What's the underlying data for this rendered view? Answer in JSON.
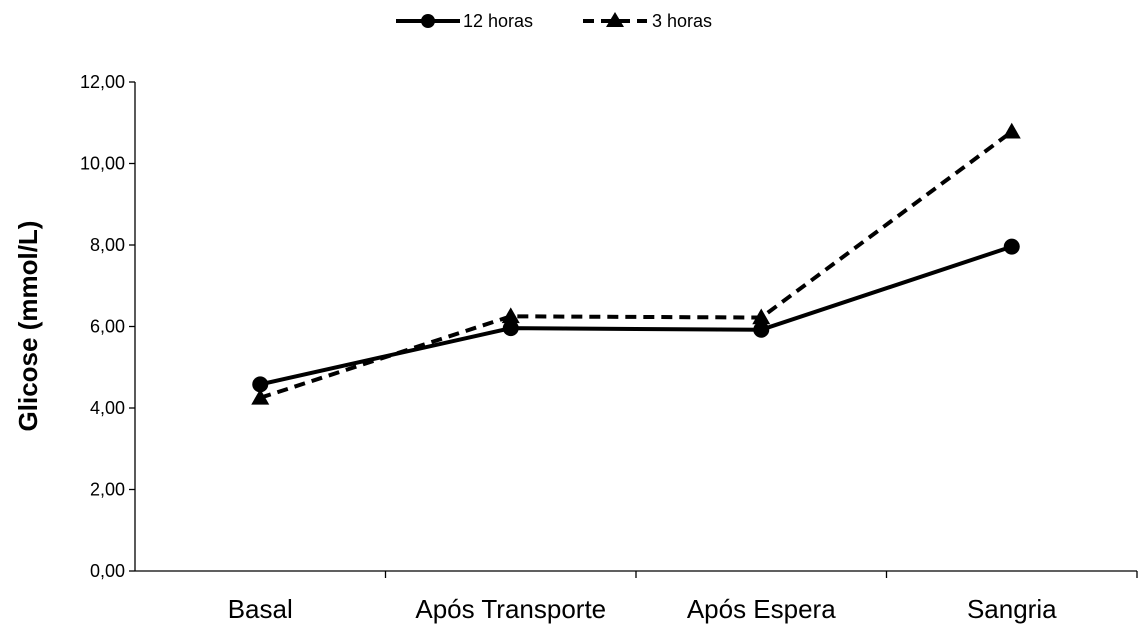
{
  "chart_data": {
    "type": "line",
    "categories": [
      "Basal",
      "Após Transporte",
      "Após Espera",
      "Sangria"
    ],
    "series": [
      {
        "name": "12 horas",
        "values": [
          4.58,
          5.96,
          5.92,
          7.96
        ],
        "style": "solid",
        "marker": "circle",
        "color": "#000000"
      },
      {
        "name": "3 horas",
        "values": [
          4.25,
          6.25,
          6.22,
          10.78
        ],
        "style": "dashed",
        "marker": "triangle",
        "color": "#000000"
      }
    ],
    "ylabel": "Glicose (mmol/L)",
    "xlabel": "",
    "ylim": [
      0,
      12
    ],
    "yticks": [
      "0,00",
      "2,00",
      "4,00",
      "6,00",
      "8,00",
      "10,00",
      "12,00"
    ],
    "grid": false,
    "legend_position": "top-center"
  }
}
